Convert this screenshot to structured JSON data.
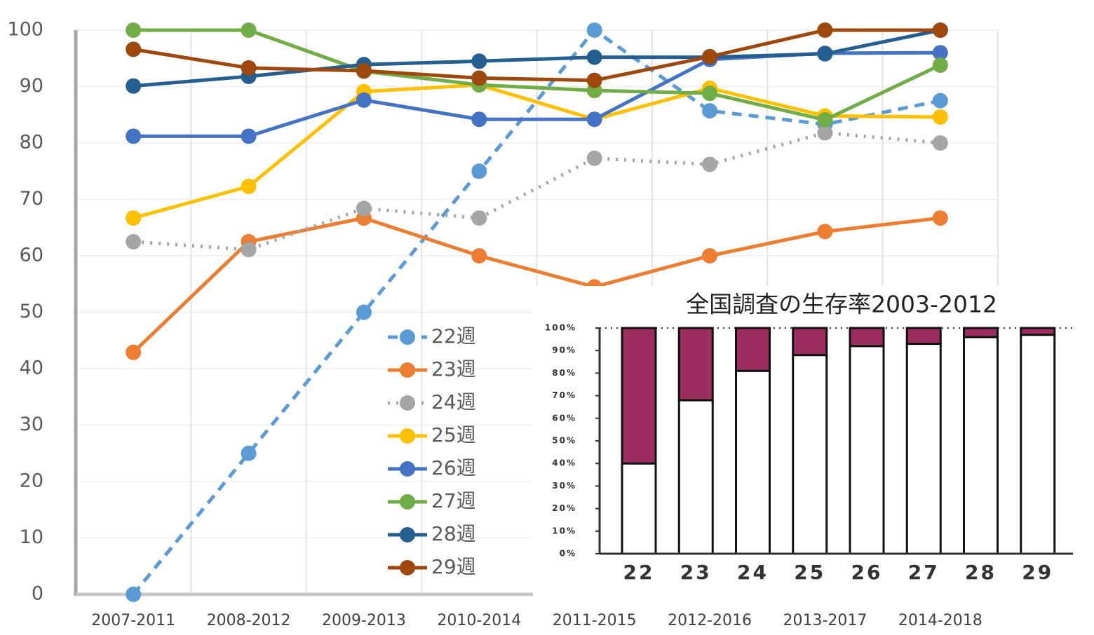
{
  "chart_data": [
    {
      "type": "line",
      "categories": [
        "2007-2011",
        "2008-2012",
        "2009-2013",
        "2010-2014",
        "2011-2015",
        "2012-2016",
        "2013-2017",
        "2014-2018"
      ],
      "ylim": [
        0,
        100
      ],
      "yticks": [
        0,
        10,
        20,
        30,
        40,
        50,
        60,
        70,
        80,
        90,
        100
      ],
      "grid": true,
      "legend": "center",
      "series": [
        {
          "name": "22週",
          "color": "#5B9BD5",
          "line_style": "dashed",
          "values": [
            0,
            25,
            50,
            75,
            100,
            85.7,
            83.3,
            87.5
          ]
        },
        {
          "name": "23週",
          "color": "#ED7D31",
          "line_style": "solid",
          "values": [
            42.9,
            62.5,
            66.7,
            60,
            54.5,
            60,
            64.3,
            66.7
          ]
        },
        {
          "name": "24週",
          "color": "#A5A5A5",
          "line_style": "dotted",
          "values": [
            62.5,
            61.1,
            68.4,
            66.7,
            77.3,
            76.2,
            81.8,
            80
          ]
        },
        {
          "name": "25週",
          "color": "#FFC000",
          "line_style": "solid",
          "values": [
            66.7,
            72.3,
            89.1,
            90.3,
            84.2,
            89.7,
            84.8,
            84.6
          ]
        },
        {
          "name": "26週",
          "color": "#4472C4",
          "line_style": "solid",
          "values": [
            81.2,
            81.2,
            87.6,
            84.2,
            84.2,
            94.8,
            95.9,
            96
          ]
        },
        {
          "name": "27週",
          "color": "#70AD47",
          "line_style": "solid",
          "values": [
            100,
            100,
            92.7,
            90.3,
            89.3,
            88.8,
            84.1,
            93.8
          ]
        },
        {
          "name": "28週",
          "color": "#255E91",
          "line_style": "solid",
          "values": [
            90.1,
            91.8,
            93.9,
            94.5,
            95.2,
            95.2,
            95.8,
            100
          ]
        },
        {
          "name": "29週",
          "color": "#9E480E",
          "line_style": "solid",
          "values": [
            96.6,
            93.3,
            92.8,
            91.5,
            91.1,
            95.3,
            100,
            100
          ]
        }
      ]
    },
    {
      "type": "stacked_bar",
      "title": "全国調査の生存率2003-2012",
      "categories": [
        "22",
        "23",
        "24",
        "25",
        "26",
        "27",
        "28",
        "29"
      ],
      "ylim": [
        0,
        100
      ],
      "yticks": [
        {
          "value": 0,
          "label": "0%"
        },
        {
          "value": 10,
          "label": "10%"
        },
        {
          "value": 20,
          "label": "20%"
        },
        {
          "value": 30,
          "label": "30%"
        },
        {
          "value": 40,
          "label": "40%"
        },
        {
          "value": 50,
          "label": "50%"
        },
        {
          "value": 60,
          "label": "60%"
        },
        {
          "value": 70,
          "label": "70%"
        },
        {
          "value": 80,
          "label": "80%"
        },
        {
          "value": 90,
          "label": "90%"
        },
        {
          "value": 100,
          "label": "100%"
        }
      ],
      "series": [
        {
          "color": "#FFFFFF",
          "values": [
            40,
            68,
            81,
            88,
            92,
            93,
            96,
            97
          ]
        },
        {
          "color": "#9B2D5F",
          "values": [
            60,
            32,
            19,
            12,
            8,
            7,
            4,
            3
          ]
        }
      ]
    }
  ]
}
